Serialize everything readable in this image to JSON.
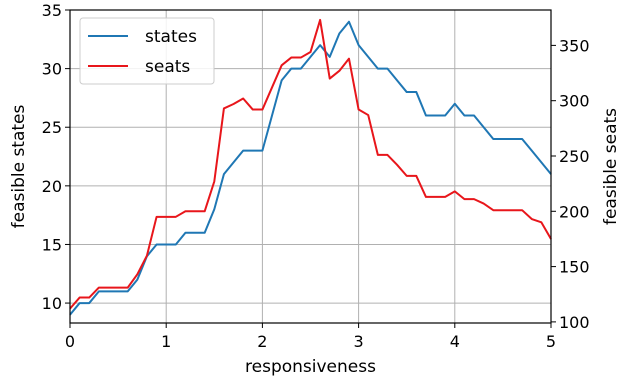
{
  "chart_data": {
    "type": "line",
    "title": "",
    "xlabel": "responsiveness",
    "ylabel_left": "feasible states",
    "ylabel_right": "feasible seats",
    "xlim": [
      0,
      5
    ],
    "ylim_left": [
      8.3,
      35
    ],
    "ylim_right": [
      99,
      382
    ],
    "x_ticks": [
      0,
      1,
      2,
      3,
      4,
      5
    ],
    "y_left_ticks": [
      10,
      15,
      20,
      25,
      30,
      35
    ],
    "y_right_ticks": [
      100,
      150,
      200,
      250,
      300,
      350
    ],
    "grid": true,
    "legend_position": "upper-left",
    "series": [
      {
        "name": "states",
        "axis": "left",
        "color": "#1f77b4",
        "x": [
          0,
          0.1,
          0.2,
          0.3,
          0.4,
          0.5,
          0.6,
          0.7,
          0.8,
          0.9,
          1.0,
          1.1,
          1.2,
          1.3,
          1.4,
          1.5,
          1.6,
          1.7,
          1.8,
          1.9,
          2.0,
          2.1,
          2.2,
          2.3,
          2.4,
          2.5,
          2.6,
          2.7,
          2.8,
          2.9,
          3.0,
          3.1,
          3.2,
          3.3,
          3.4,
          3.5,
          3.6,
          3.7,
          3.8,
          3.9,
          4.0,
          4.1,
          4.2,
          4.3,
          4.4,
          4.5,
          4.6,
          4.7,
          4.8,
          4.9,
          5.0
        ],
        "y": [
          9,
          10,
          10,
          11,
          11,
          11,
          11,
          12,
          14,
          15,
          15,
          15,
          16,
          16,
          16,
          18,
          21,
          22,
          23,
          23,
          23,
          26,
          29,
          30,
          30,
          31,
          32,
          31,
          33,
          34,
          32,
          31,
          30,
          30,
          29,
          28,
          28,
          26,
          26,
          26,
          27,
          26,
          26,
          25,
          24,
          24,
          24,
          24,
          23,
          22,
          21
        ]
      },
      {
        "name": "seats",
        "axis": "right",
        "color": "#e8161b",
        "x": [
          0,
          0.1,
          0.2,
          0.3,
          0.4,
          0.5,
          0.6,
          0.7,
          0.8,
          0.9,
          1.0,
          1.1,
          1.2,
          1.3,
          1.4,
          1.5,
          1.6,
          1.7,
          1.8,
          1.9,
          2.0,
          2.1,
          2.2,
          2.3,
          2.4,
          2.5,
          2.6,
          2.7,
          2.8,
          2.9,
          3.0,
          3.1,
          3.2,
          3.3,
          3.4,
          3.5,
          3.6,
          3.7,
          3.8,
          3.9,
          4.0,
          4.1,
          4.2,
          4.3,
          4.4,
          4.5,
          4.6,
          4.7,
          4.8,
          4.9,
          5.0
        ],
        "y": [
          112,
          122,
          122,
          131,
          131,
          131,
          131,
          143,
          160,
          195,
          195,
          195,
          200,
          200,
          200,
          227,
          293,
          297,
          302,
          292,
          292,
          312,
          332,
          339,
          339,
          344,
          373,
          320,
          327,
          338,
          292,
          287,
          251,
          251,
          242,
          232,
          232,
          213,
          213,
          213,
          218,
          211,
          211,
          207,
          201,
          201,
          201,
          201,
          193,
          190,
          175
        ]
      }
    ]
  }
}
